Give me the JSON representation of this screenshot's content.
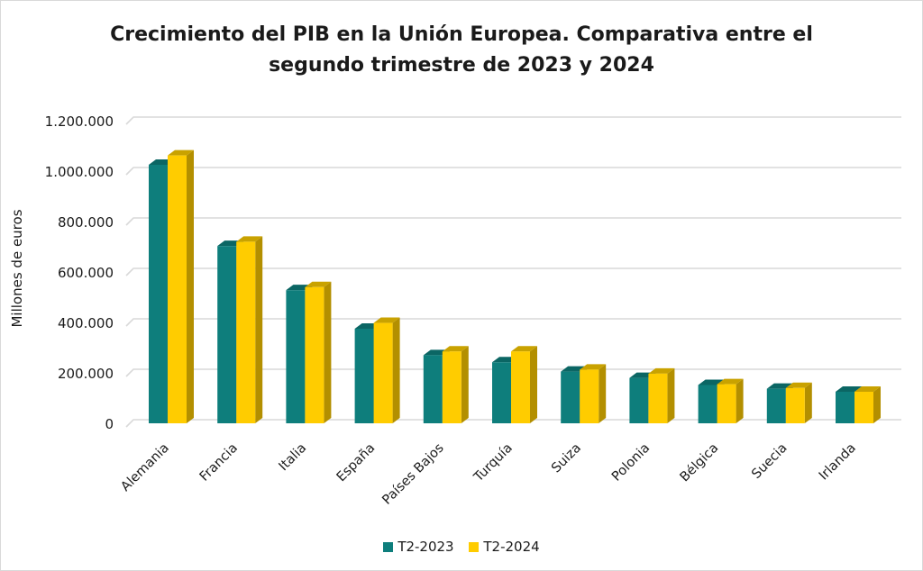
{
  "colors": {
    "t2_2023": "#0e7e7c",
    "t2_2023_side": "#0a5655",
    "t2_2023_top": "#0b6664",
    "t2_2024": "#ffcc00",
    "t2_2024_side": "#b38f00",
    "t2_2024_top": "#c9a200",
    "grid": "#d9d9d9",
    "floor": "#d9d9d9"
  },
  "chart_data": {
    "type": "bar",
    "title": "Crecimiento del PIB en la Unión Europea. Comparativa entre el segundo trimestre de 2023 y 2024",
    "xlabel": "",
    "ylabel": "Millones de euros",
    "ylim": [
      0,
      1200000
    ],
    "yticks": [
      0,
      200000,
      400000,
      600000,
      800000,
      1000000,
      1200000
    ],
    "ytick_labels": [
      "0",
      "200.000",
      "400.000",
      "600.000",
      "800.000",
      "1.000.000",
      "1.200.000"
    ],
    "grid": true,
    "legend_position": "bottom",
    "categories": [
      "Alemania",
      "Francia",
      "Italia",
      "España",
      "Países Bajos",
      "Turquía",
      "Suiza",
      "Polonia",
      "Bélgica",
      "Suecia",
      "Irlanda"
    ],
    "series": [
      {
        "name": "T2-2023",
        "values": [
          1025000,
          703000,
          528000,
          375000,
          270000,
          242000,
          205000,
          180000,
          152000,
          137000,
          125000
        ]
      },
      {
        "name": "T2-2024",
        "values": [
          1062000,
          720000,
          540000,
          398000,
          285000,
          285000,
          213000,
          197000,
          155000,
          140000,
          125000
        ]
      }
    ]
  }
}
